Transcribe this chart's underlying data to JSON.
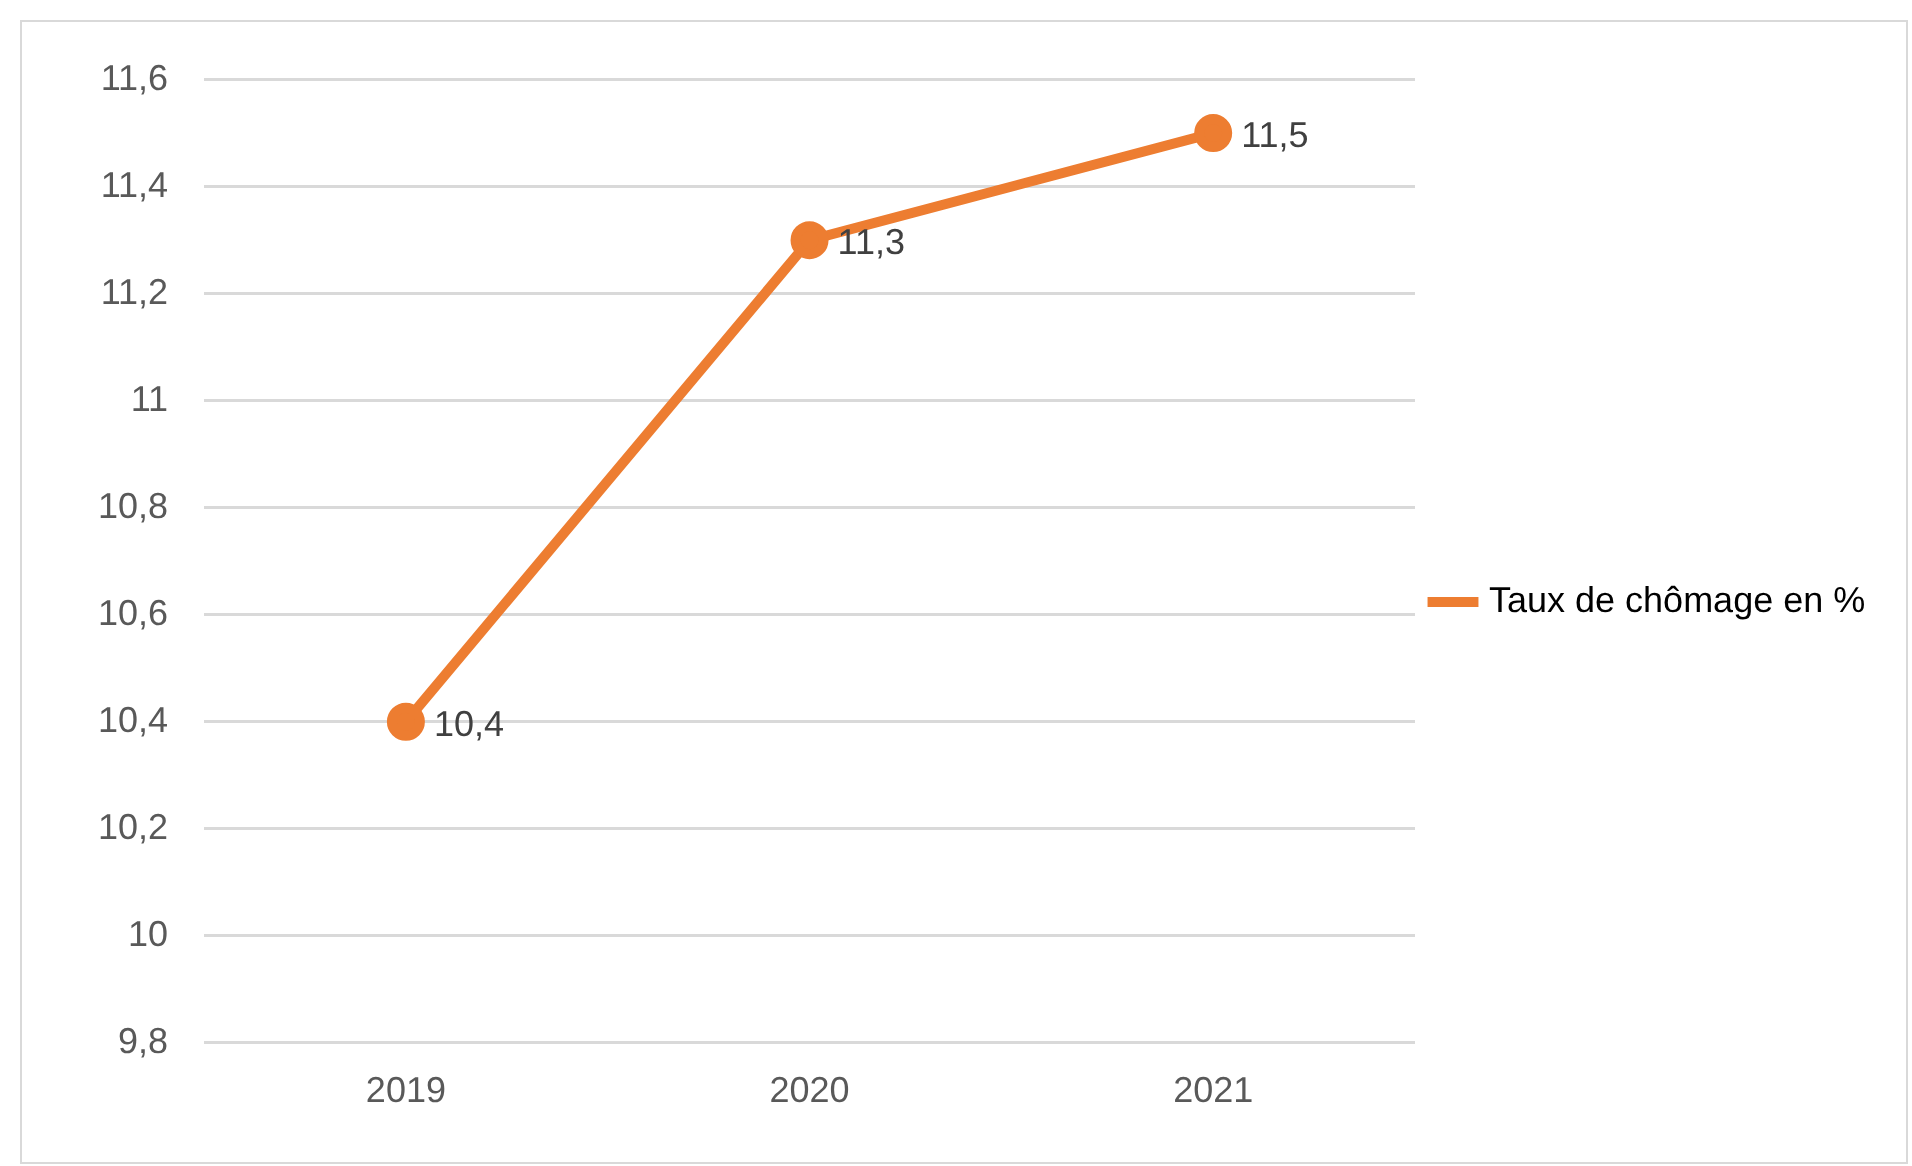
{
  "chart_data": {
    "type": "line",
    "categories": [
      "2019",
      "2020",
      "2021"
    ],
    "series": [
      {
        "name": "Taux de chômage en %",
        "color": "#ed7d31",
        "values": [
          10.4,
          11.3,
          11.5
        ],
        "value_labels": [
          "10,4",
          "11,3",
          "11,5"
        ]
      }
    ],
    "ylim": [
      9.8,
      11.6
    ],
    "yticks": [
      {
        "value": 9.8,
        "label": "9,8"
      },
      {
        "value": 10,
        "label": "10"
      },
      {
        "value": 10.2,
        "label": "10,2"
      },
      {
        "value": 10.4,
        "label": "10,4"
      },
      {
        "value": 10.6,
        "label": "10,6"
      },
      {
        "value": 10.8,
        "label": "10,8"
      },
      {
        "value": 11,
        "label": "11"
      },
      {
        "value": 11.2,
        "label": "11,2"
      },
      {
        "value": 11.4,
        "label": "11,4"
      },
      {
        "value": 11.6,
        "label": "11,6"
      }
    ],
    "grid": "y",
    "legend": "right",
    "marker": "circle",
    "line_style": "solid"
  }
}
